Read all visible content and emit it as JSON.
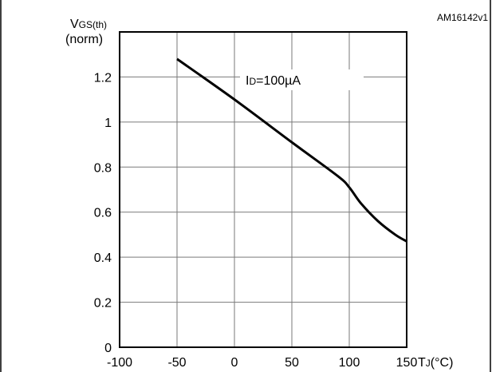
{
  "figure_id": "AM16142v1",
  "y_axis": {
    "label_main": "V",
    "label_sub": "GS(th)",
    "label_unit": "(norm)"
  },
  "x_axis": {
    "label_main": "T",
    "label_sub": "J",
    "label_unit": "(°C)"
  },
  "annotation": {
    "main": "I",
    "sub": "D",
    "value": "=100µA"
  },
  "chart_data": {
    "type": "line",
    "title": "",
    "xlabel": "TJ(°C)",
    "ylabel": "VGS(th) (norm)",
    "xlim": [
      -100,
      150
    ],
    "ylim": [
      0,
      1.4
    ],
    "grid": true,
    "x_ticks": [
      -100,
      -50,
      0,
      50,
      100,
      150
    ],
    "x_tick_labels": [
      "-100",
      "-50",
      "0",
      "50",
      "100",
      "150"
    ],
    "y_ticks": [
      0,
      0.2,
      0.4,
      0.6,
      0.8,
      1,
      1.2
    ],
    "y_tick_labels": [
      "0",
      "0.2",
      "0.4",
      "0.6",
      "0.8",
      "1",
      "1.2"
    ],
    "series": [
      {
        "x": [
          -50,
          0,
          50,
          90,
          100,
          110,
          125,
          140,
          150
        ],
        "y": [
          1.28,
          1.1,
          0.91,
          0.76,
          0.71,
          0.64,
          0.56,
          0.5,
          0.47
        ]
      }
    ]
  }
}
